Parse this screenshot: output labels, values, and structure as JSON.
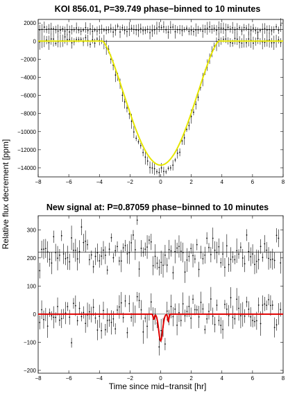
{
  "ylabel": "Relative flux decrement [ppm]",
  "xlabel": "Time since mid−transit [hr]",
  "colors": {
    "top_model": "#e6e600",
    "bottom_model": "#e00000",
    "points": "#000000"
  },
  "chart_data": [
    {
      "type": "scatter",
      "title": "KOI 856.01, P=39.749 phase−binned to 10 minutes",
      "xlim": [
        -8,
        8
      ],
      "ylim": [
        -15000,
        2400
      ],
      "xticks": [
        -8,
        -6,
        -4,
        -2,
        0,
        2,
        4,
        6,
        8
      ],
      "yticks": [
        -14000,
        -12000,
        -10000,
        -8000,
        -6000,
        -4000,
        -2000,
        0,
        2000
      ],
      "tick_labels_x": [
        "−8",
        "−6",
        "−4",
        "−2",
        "0",
        "2",
        "4",
        "6",
        "8"
      ],
      "tick_labels_y": [
        "−14000",
        "−12000",
        "−10000",
        "−8000",
        "−6000",
        "−4000",
        "−2000",
        "0",
        "2000"
      ],
      "offset_line": 1300,
      "transit_depth": 13700,
      "transit_half_duration_hr": 3.8,
      "binned_points_baseline_noise": 250,
      "model_color": "#e6e600",
      "grid": false
    },
    {
      "type": "scatter",
      "title": "New signal at: P=0.87059 phase−binned to 10 minutes",
      "xlim": [
        -8,
        8
      ],
      "ylim": [
        -210,
        350
      ],
      "xticks": [
        -8,
        -6,
        -4,
        -2,
        0,
        2,
        4,
        6,
        8
      ],
      "yticks": [
        -200,
        -100,
        0,
        100,
        200,
        300
      ],
      "tick_labels_x": [
        "−8",
        "−6",
        "−4",
        "−2",
        "0",
        "2",
        "4",
        "6",
        "8"
      ],
      "tick_labels_y": [
        "−200",
        "−100",
        "0",
        "100",
        "200",
        "300"
      ],
      "offset_line": 220,
      "transit_depth": 95,
      "transit_center_hr": 0,
      "model_color": "#e00000",
      "grid": false
    }
  ]
}
